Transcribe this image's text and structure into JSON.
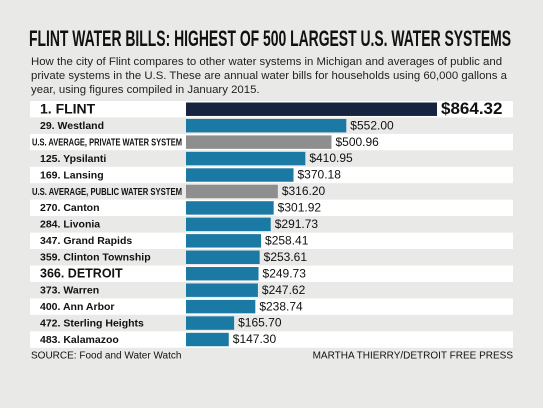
{
  "chart_data": {
    "type": "bar",
    "orientation": "horizontal",
    "title": "FLINT WATER BILLS: HIGHEST OF 500 LARGEST U.S. WATER SYSTEMS",
    "subtitle": "How the city of Flint compares to other water systems in Michigan and averages of public and private systems in the U.S. These are annual water bills for households using 60,000 gallons a year, using figures compiled in January 2015.",
    "categories": [
      "1. FLINT",
      "29. Westland",
      "U.S. AVERAGE, PRIVATE WATER SYSTEM",
      "125. Ypsilanti",
      "169. Lansing",
      "U.S. AVERAGE, PUBLIC WATER SYSTEM",
      "270. Canton",
      "284. Livonia",
      "347. Grand Rapids",
      "359. Clinton Township",
      "366. DETROIT",
      "373. Warren",
      "400. Ann Arbor",
      "472. Sterling Heights",
      "483. Kalamazoo"
    ],
    "values": [
      864.32,
      552.0,
      500.96,
      410.95,
      370.18,
      316.2,
      301.92,
      291.73,
      258.41,
      253.61,
      249.73,
      247.62,
      238.74,
      165.7,
      147.3
    ],
    "value_labels": [
      "$864.32",
      "$552.00",
      "$500.96",
      "$410.95",
      "$370.18",
      "$316.20",
      "$301.92",
      "$291.73",
      "$258.41",
      "$253.61",
      "$249.73",
      "$247.62",
      "$238.74",
      "$165.70",
      "$147.30"
    ],
    "colors": [
      "#16243f",
      "#1b7aa3",
      "#8e8e8e",
      "#1b7aa3",
      "#1b7aa3",
      "#8e8e8e",
      "#1b7aa3",
      "#1b7aa3",
      "#1b7aa3",
      "#1b7aa3",
      "#1b7aa3",
      "#1b7aa3",
      "#1b7aa3",
      "#1b7aa3",
      "#1b7aa3"
    ],
    "source": "SOURCE: Food and Water Watch",
    "credit": "MARTHA THIERRY/DETROIT FREE PRESS"
  }
}
